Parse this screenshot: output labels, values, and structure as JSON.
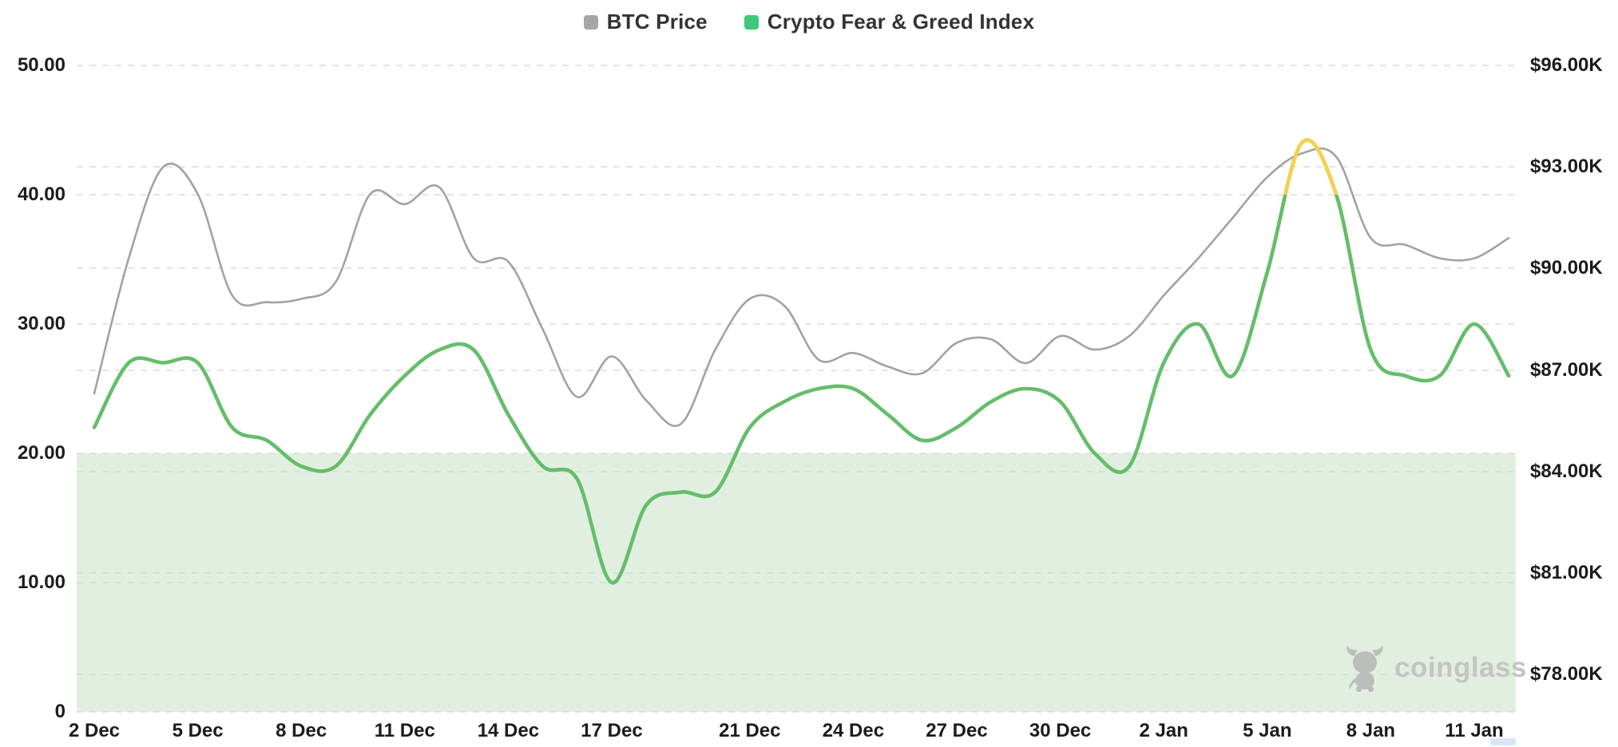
{
  "legend": {
    "btc_label": "BTC Price",
    "fng_label": "Crypto Fear & Greed Index"
  },
  "watermark": {
    "text": "coinglass"
  },
  "colors": {
    "btc_line": "#a2a2a2",
    "btc_legend_marker": "#a6a6a6",
    "fng_line": "#65bd6a",
    "fng_legend_marker": "#3ec878",
    "greed_highlight": "#f8d04a",
    "fear_zone_fill": "rgba(195,223,193,0.5)",
    "gridline": "#e4e4e4",
    "tick_text": "#1c1c1c"
  },
  "chart_data": {
    "type": "line",
    "x": [
      "2 Dec",
      "3 Dec",
      "4 Dec",
      "5 Dec",
      "6 Dec",
      "7 Dec",
      "8 Dec",
      "9 Dec",
      "10 Dec",
      "11 Dec",
      "12 Dec",
      "13 Dec",
      "14 Dec",
      "15 Dec",
      "16 Dec",
      "17 Dec",
      "18 Dec",
      "19 Dec",
      "20 Dec",
      "21 Dec",
      "22 Dec",
      "23 Dec",
      "24 Dec",
      "25 Dec",
      "26 Dec",
      "27 Dec",
      "28 Dec",
      "29 Dec",
      "30 Dec",
      "31 Dec",
      "1 Jan",
      "2 Jan",
      "3 Jan",
      "4 Jan",
      "5 Jan",
      "6 Jan",
      "7 Jan",
      "8 Jan",
      "9 Jan",
      "10 Jan",
      "11 Jan",
      "12 Jan"
    ],
    "series": [
      {
        "name": "BTC Price",
        "yaxis": "right",
        "unit": "USD thousands",
        "color": "#a2a2a2",
        "values": [
          86.3,
          90.3,
          93.0,
          92.2,
          89.2,
          89.0,
          89.1,
          89.6,
          92.2,
          91.9,
          92.4,
          90.3,
          90.2,
          88.2,
          86.2,
          87.4,
          86.1,
          85.4,
          87.6,
          89.1,
          88.9,
          87.3,
          87.5,
          87.1,
          86.9,
          87.8,
          87.9,
          87.2,
          88.0,
          87.6,
          88.0,
          89.2,
          90.3,
          91.5,
          92.7,
          93.4,
          93.3,
          90.9,
          90.7,
          90.3,
          90.3,
          90.9
        ]
      },
      {
        "name": "Crypto Fear & Greed Index",
        "yaxis": "left",
        "unit": "index 0-100",
        "color": "#65bd6a",
        "highlight": {
          "above": 40,
          "color": "#f8d04a"
        },
        "values": [
          22,
          27,
          27,
          27,
          22,
          21,
          19,
          19,
          23,
          26,
          28,
          28,
          23,
          19,
          18,
          10,
          16,
          17,
          17,
          22,
          24,
          25,
          25,
          23,
          21,
          22,
          24,
          25,
          24,
          20,
          19,
          27,
          30,
          26,
          34,
          44,
          40,
          28,
          26,
          26,
          30,
          26
        ]
      }
    ],
    "left_axis": {
      "range": [
        0,
        50
      ],
      "tick_values": [
        0,
        10,
        20,
        30,
        40,
        50
      ],
      "tick_labels": [
        "0",
        "10.00",
        "20.00",
        "30.00",
        "40.00",
        "50.00"
      ]
    },
    "right_axis": {
      "range": [
        78,
        96
      ],
      "tick_values": [
        78,
        81,
        84,
        87,
        90,
        93,
        96
      ],
      "tick_labels": [
        "$78.00K",
        "$81.00K",
        "$84.00K",
        "$87.00K",
        "$90.00K",
        "$93.00K",
        "$96.00K"
      ]
    },
    "x_ticks": [
      {
        "label": "2 Dec",
        "day": 0
      },
      {
        "label": "5 Dec",
        "day": 3
      },
      {
        "label": "8 Dec",
        "day": 6
      },
      {
        "label": "11 Dec",
        "day": 9
      },
      {
        "label": "14 Dec",
        "day": 12
      },
      {
        "label": "17 Dec",
        "day": 15
      },
      {
        "label": "21 Dec",
        "day": 19
      },
      {
        "label": "24 Dec",
        "day": 22
      },
      {
        "label": "27 Dec",
        "day": 25
      },
      {
        "label": "30 Dec",
        "day": 28
      },
      {
        "label": "2 Jan",
        "day": 31
      },
      {
        "label": "5 Jan",
        "day": 34
      },
      {
        "label": "8 Jan",
        "day": 37
      },
      {
        "label": "11 Jan",
        "day": 40
      }
    ],
    "fear_zone": {
      "from": 0,
      "to": 20
    },
    "grid": "horizontal-dashed",
    "legend_position": "top-center"
  }
}
